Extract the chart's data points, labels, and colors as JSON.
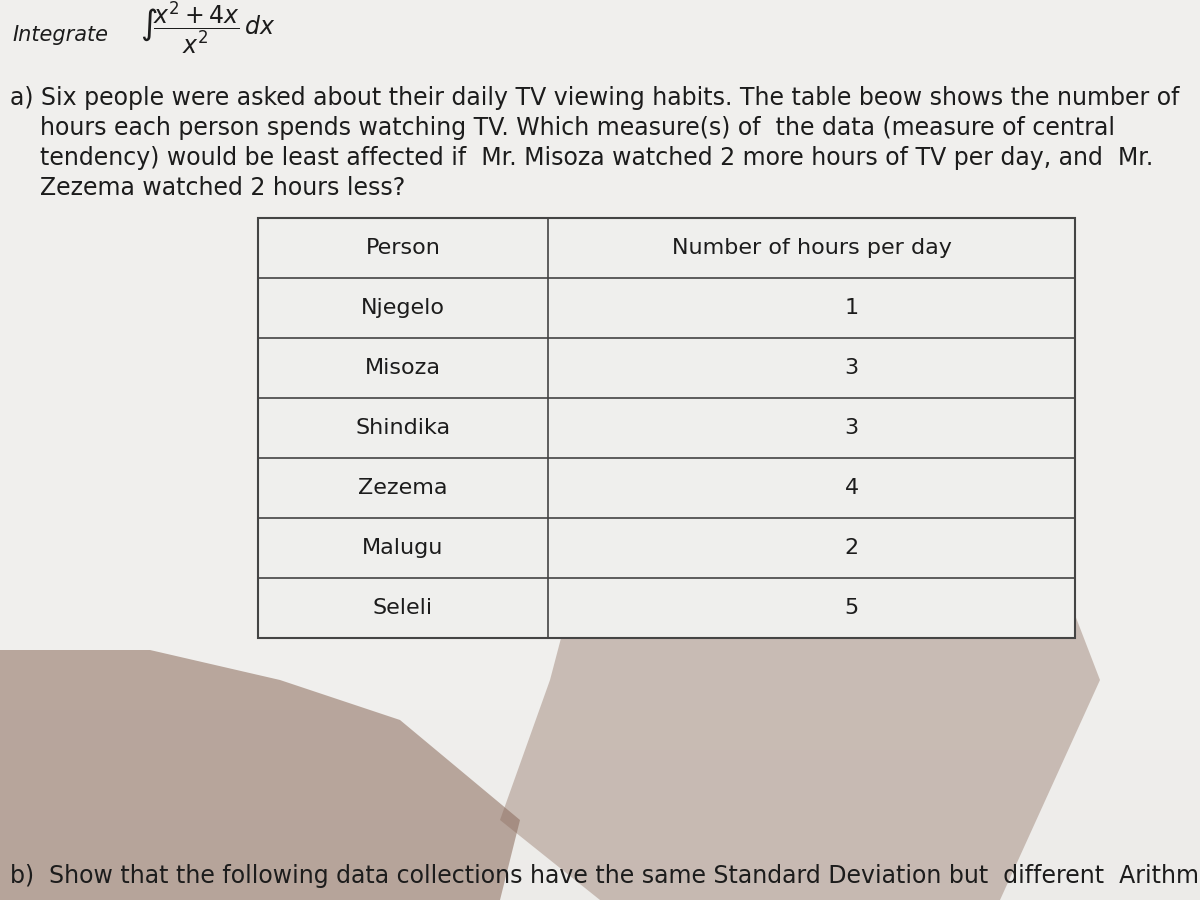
{
  "bg_color": "#d8d5d0",
  "upper_bg_color": "#e8e6e3",
  "page_bg": "#f0efed",
  "integrate_label": "Integrate",
  "table_header": [
    "Person",
    "Number of hours per day"
  ],
  "table_rows": [
    [
      "Njegelo",
      "1"
    ],
    [
      "Misoza",
      "3"
    ],
    [
      "Shindika",
      "3"
    ],
    [
      "Zezema",
      "4"
    ],
    [
      "Malugu",
      "2"
    ],
    [
      "Seleli",
      "5"
    ]
  ],
  "part_b_text": "b)  Show that the following data collections have the same Standard Deviation but  different  Arithm",
  "text_color": "#1c1c1c",
  "table_bg": "#efefed",
  "line_color": "#444444",
  "font_size_main": 17,
  "font_size_table": 16,
  "font_size_integrate": 15,
  "shadow_color": "#8a6a5a",
  "shadow_alpha": 0.55
}
